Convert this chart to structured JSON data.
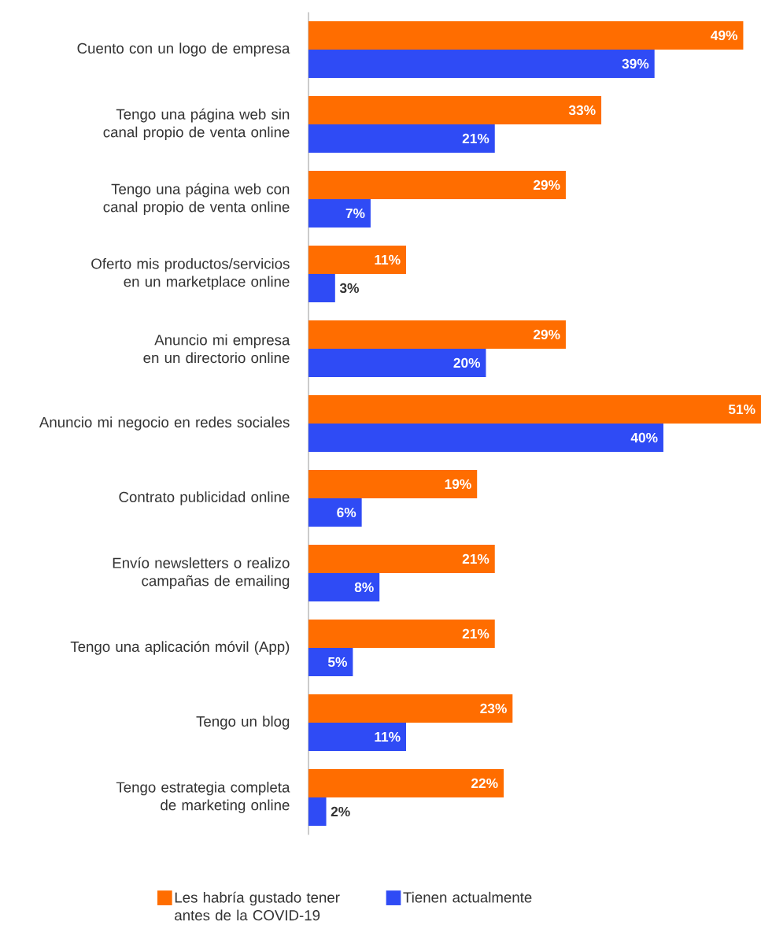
{
  "chart_data": {
    "type": "bar",
    "orientation": "horizontal",
    "legend": "bottom",
    "categories": [
      "Cuento con un logo de empresa",
      "Tengo una página web sin canal propio de venta online",
      "Tengo una página web con canal propio de venta online",
      "Oferto mis productos/servicios en un marketplace online",
      "Anuncio mi empresa en un directorio online",
      "Anuncio mi negocio en redes sociales",
      "Contrato publicidad online",
      "Envío newsletters o realizo campañas de emailing",
      "Tengo una aplicación móvil (App)",
      "Tengo un blog",
      "Tengo estrategia completa de marketing online"
    ],
    "series": [
      {
        "name": "Les habría gustado tener antes de la COVID-19",
        "color": "#ff6d00",
        "values": [
          49,
          33,
          29,
          11,
          29,
          51,
          19,
          21,
          21,
          23,
          22
        ],
        "value_labels": [
          "49%",
          "33%",
          "29%",
          "11%",
          "29%",
          "51%",
          "19%",
          "21%",
          "21%",
          "23%",
          "22%"
        ]
      },
      {
        "name": "Tienen actualmente",
        "color": "#2f4bf5",
        "values": [
          39,
          21,
          7,
          3,
          20,
          40,
          6,
          8,
          5,
          11,
          2
        ],
        "value_labels": [
          "39%",
          "21%",
          "7%",
          "3%",
          "20%",
          "40%",
          "6%",
          "8%",
          "5%",
          "11%",
          "2%"
        ]
      }
    ]
  }
}
